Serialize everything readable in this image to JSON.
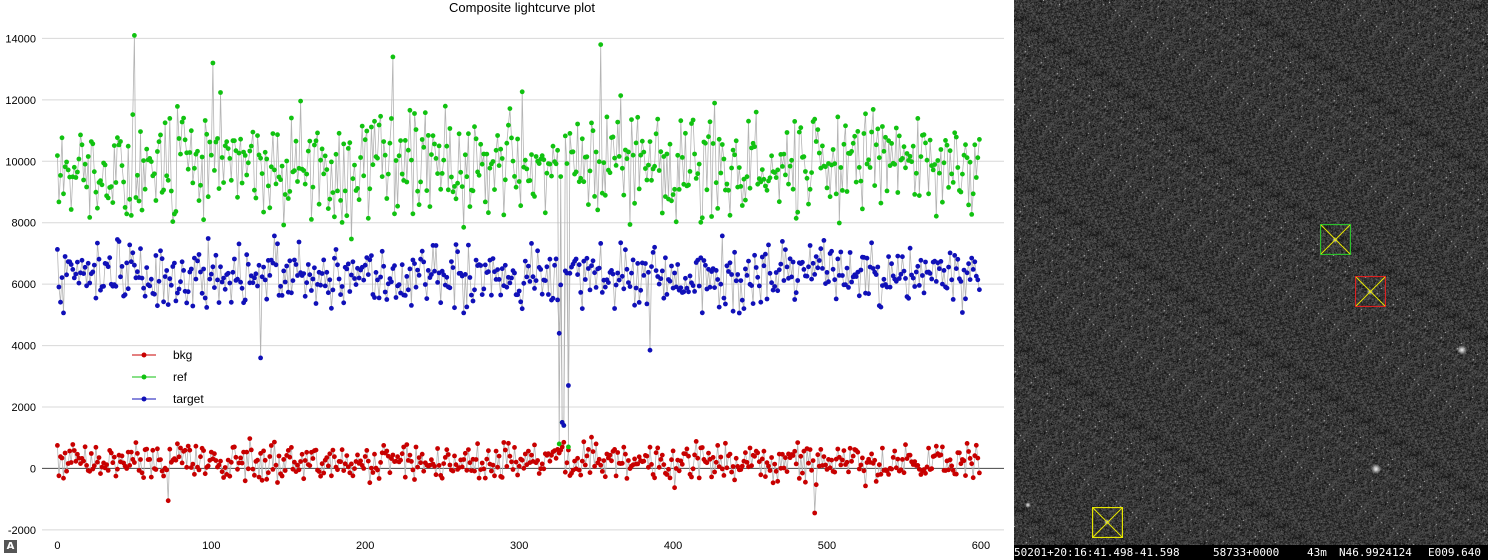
{
  "colors": {
    "bkg": "#c80000",
    "ref": "#11c211",
    "target": "#1010b8",
    "connector": "#b4b4b4",
    "marker_ref": "#2cc12c",
    "marker_target": "#dd2222",
    "marker_check": "#e8e800"
  },
  "chart_data": {
    "type": "line",
    "title": "Composite lightcurve plot",
    "xlabel": "",
    "ylabel": "",
    "xlim": [
      -10,
      615
    ],
    "ylim": [
      -2200,
      14600
    ],
    "xticks": [
      0,
      100,
      200,
      300,
      400,
      500,
      600
    ],
    "yticks": [
      -2000,
      0,
      2000,
      4000,
      6000,
      8000,
      10000,
      12000,
      14000
    ],
    "grid": "horizontal",
    "legend_position": "middle-left",
    "series": [
      {
        "name": "bkg",
        "color": "#c80000",
        "mean": 200,
        "spread": 560,
        "seed": 11,
        "dip_values": [
          500,
          700,
          850,
          600
        ]
      },
      {
        "name": "ref",
        "color": "#11c211",
        "mean": 9900,
        "spread": 1600,
        "seed": 23,
        "dip_values": [
          800,
          1500,
          1400,
          700
        ]
      },
      {
        "name": "target",
        "color": "#1010b8",
        "mean": 6300,
        "spread": 900,
        "seed": 37,
        "dip_values": [
          4400,
          1500,
          1400,
          2700
        ]
      }
    ],
    "n_points": 600,
    "dip_x": [
      326,
      328,
      329,
      332
    ],
    "highlights": [
      {
        "series": "ref",
        "x": 50,
        "y": 14100
      },
      {
        "series": "ref",
        "x": 353,
        "y": 13800
      },
      {
        "series": "ref",
        "x": 218,
        "y": 13400
      },
      {
        "series": "ref",
        "x": 101,
        "y": 13200
      },
      {
        "series": "target",
        "x": 132,
        "y": 3600
      },
      {
        "series": "target",
        "x": 385,
        "y": 3850
      },
      {
        "series": "bkg",
        "x": 492,
        "y": -1450
      },
      {
        "series": "bkg",
        "x": 72,
        "y": -1050
      }
    ]
  },
  "sky": {
    "markers": [
      {
        "role": "ref",
        "label": "ref-star"
      },
      {
        "role": "target",
        "label": "target-star"
      },
      {
        "role": "check",
        "label": "check-star"
      }
    ],
    "stars": [
      "bright-star-1",
      "bright-star-2"
    ]
  },
  "status": {
    "time": "50201+20:16:41.498-41.598",
    "pixel": "58733+0000",
    "zoom": "43m",
    "ra": "N46.9924124",
    "dec": "E009.640"
  },
  "badge": "A"
}
